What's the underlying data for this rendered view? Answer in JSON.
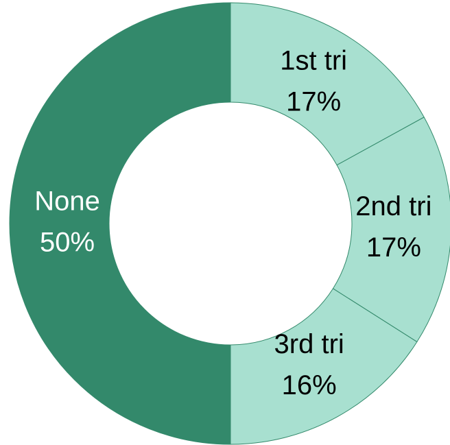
{
  "chart_data": {
    "type": "donut",
    "categories": [
      "1st tri",
      "2nd tri",
      "3rd tri",
      "None"
    ],
    "values": [
      17,
      17,
      16,
      50
    ],
    "value_labels": [
      "17%",
      "17%",
      "16%",
      "50%"
    ],
    "colors": [
      "#a8e0d0",
      "#a8e0d0",
      "#a8e0d0",
      "#33896b"
    ],
    "label_colors": [
      "#000000",
      "#000000",
      "#000000",
      "#ffffff"
    ]
  }
}
